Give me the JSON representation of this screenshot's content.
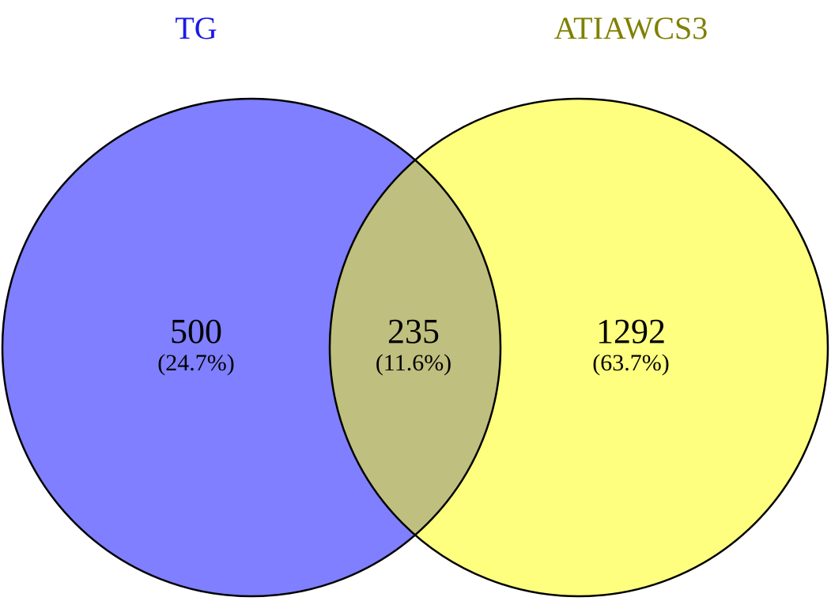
{
  "chart_data": {
    "type": "venn",
    "sets": [
      {
        "name": "TG",
        "color": "#0000ff",
        "label_color": "#1a1ae6"
      },
      {
        "name": "ATIAWCS3",
        "color": "#ffff00",
        "label_color": "#808000"
      }
    ],
    "values": [
      500,
      235,
      1292
    ],
    "percents": [
      24.7,
      11.6,
      63.7
    ],
    "percent_labels": [
      "(24.7%)",
      "(11.6%)",
      "(63.7%)"
    ]
  }
}
